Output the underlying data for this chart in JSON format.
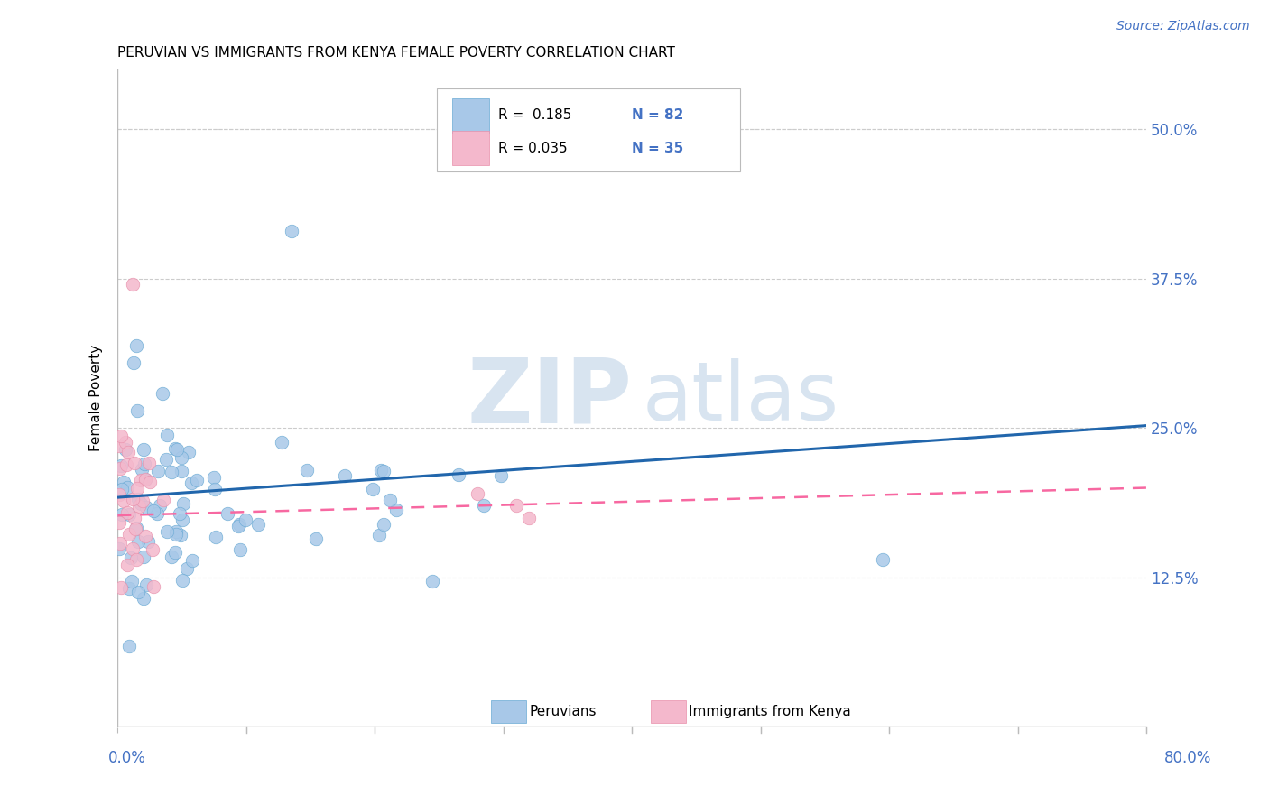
{
  "title": "PERUVIAN VS IMMIGRANTS FROM KENYA FEMALE POVERTY CORRELATION CHART",
  "source": "Source: ZipAtlas.com",
  "ylabel": "Female Poverty",
  "ytick_vals": [
    0.125,
    0.25,
    0.375,
    0.5
  ],
  "ytick_labels": [
    "12.5%",
    "25.0%",
    "37.5%",
    "50.0%"
  ],
  "xlim": [
    0.0,
    0.8
  ],
  "ylim": [
    0.0,
    0.55
  ],
  "peruvian_color": "#a8c8e8",
  "peruvian_edge_color": "#6aaad4",
  "kenya_color": "#f4b8cc",
  "kenya_edge_color": "#e890ab",
  "peruvian_line_color": "#2166ac",
  "kenya_line_color": "#f768a1",
  "background_color": "#ffffff",
  "grid_color": "#cccccc",
  "border_color": "#bbbbbb",
  "right_label_color": "#4472c4",
  "title_fontsize": 11,
  "source_fontsize": 10,
  "ytick_fontsize": 12,
  "ylabel_fontsize": 11,
  "legend_fontsize": 11,
  "peru_line_y0": 0.192,
  "peru_line_y1": 0.252,
  "kenya_line_y0": 0.177,
  "kenya_line_y1": 0.2,
  "watermark_zip_color": "#d8e4f0",
  "watermark_atlas_color": "#d8e4f0"
}
